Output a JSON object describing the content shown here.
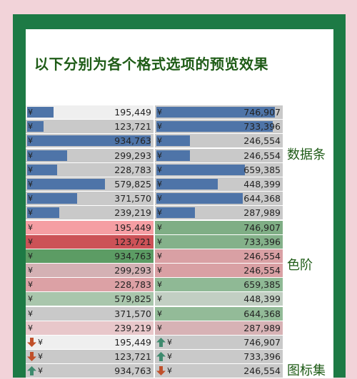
{
  "title": "以下分别为各个格式选项的预览效果",
  "labels": {
    "data_bars": "数据条",
    "color_scale": "色阶",
    "icon_set": "图标集"
  },
  "currency": "¥",
  "data_bar_rows": [
    {
      "a": "195,449",
      "a_fill": 0.21,
      "b": "746,907",
      "b_fill": 0.95
    },
    {
      "a": "123,721",
      "a_fill": 0.13,
      "b": "733,396",
      "b_fill": 0.93
    },
    {
      "a": "934,763",
      "a_fill": 0.99,
      "b": "246,554",
      "b_fill": 0.27
    },
    {
      "a": "299,293",
      "a_fill": 0.32,
      "b": "246,554",
      "b_fill": 0.27
    },
    {
      "a": "228,783",
      "a_fill": 0.24,
      "b": "659,385",
      "b_fill": 0.71
    },
    {
      "a": "579,825",
      "a_fill": 0.62,
      "b": "448,399",
      "b_fill": 0.49
    },
    {
      "a": "371,570",
      "a_fill": 0.4,
      "b": "644,368",
      "b_fill": 0.69
    },
    {
      "a": "239,219",
      "a_fill": 0.26,
      "b": "287,989",
      "b_fill": 0.31
    }
  ],
  "color_scale_rows": [
    {
      "a": "195,449",
      "a_color": "#f59ea3",
      "b": "746,907",
      "b_color": "#7fae85"
    },
    {
      "a": "123,721",
      "a_color": "#cc5257",
      "b": "733,396",
      "b_color": "#84b18a"
    },
    {
      "a": "934,763",
      "a_color": "#5c9c64",
      "b": "246,554",
      "b_color": "#d9a0a4"
    },
    {
      "a": "299,293",
      "a_color": "#d4b1b4",
      "b": "246,554",
      "b_color": "#d9a0a4"
    },
    {
      "a": "228,783",
      "a_color": "#dca1a5",
      "b": "659,385",
      "b_color": "#8fb995"
    },
    {
      "a": "579,825",
      "a_color": "#a9c6ac",
      "b": "448,399",
      "b_color": "#c2cfc3"
    },
    {
      "a": "371,570",
      "a_color": "#c9c9c9",
      "b": "644,368",
      "b_color": "#93bb98"
    },
    {
      "a": "239,219",
      "a_color": "#e8c7ca",
      "b": "287,989",
      "b_color": "#d7b2b5"
    }
  ],
  "icon_rows": [
    {
      "a": "195,449",
      "a_icon": "down-arrow-icon",
      "b": "746,907",
      "b_icon": "up-arrow-icon"
    },
    {
      "a": "123,721",
      "a_icon": "down-arrow-icon",
      "b": "733,396",
      "b_icon": "up-arrow-icon"
    },
    {
      "a": "934,763",
      "a_icon": "up-arrow-icon",
      "b": "246,554",
      "b_icon": "down-arrow-icon"
    }
  ],
  "colors": {
    "frame": "#1d7a45",
    "title": "#1f5c17",
    "bar": "#4e74a8",
    "arrow_down": "#c0502a",
    "arrow_up": "#3e8a6e"
  }
}
